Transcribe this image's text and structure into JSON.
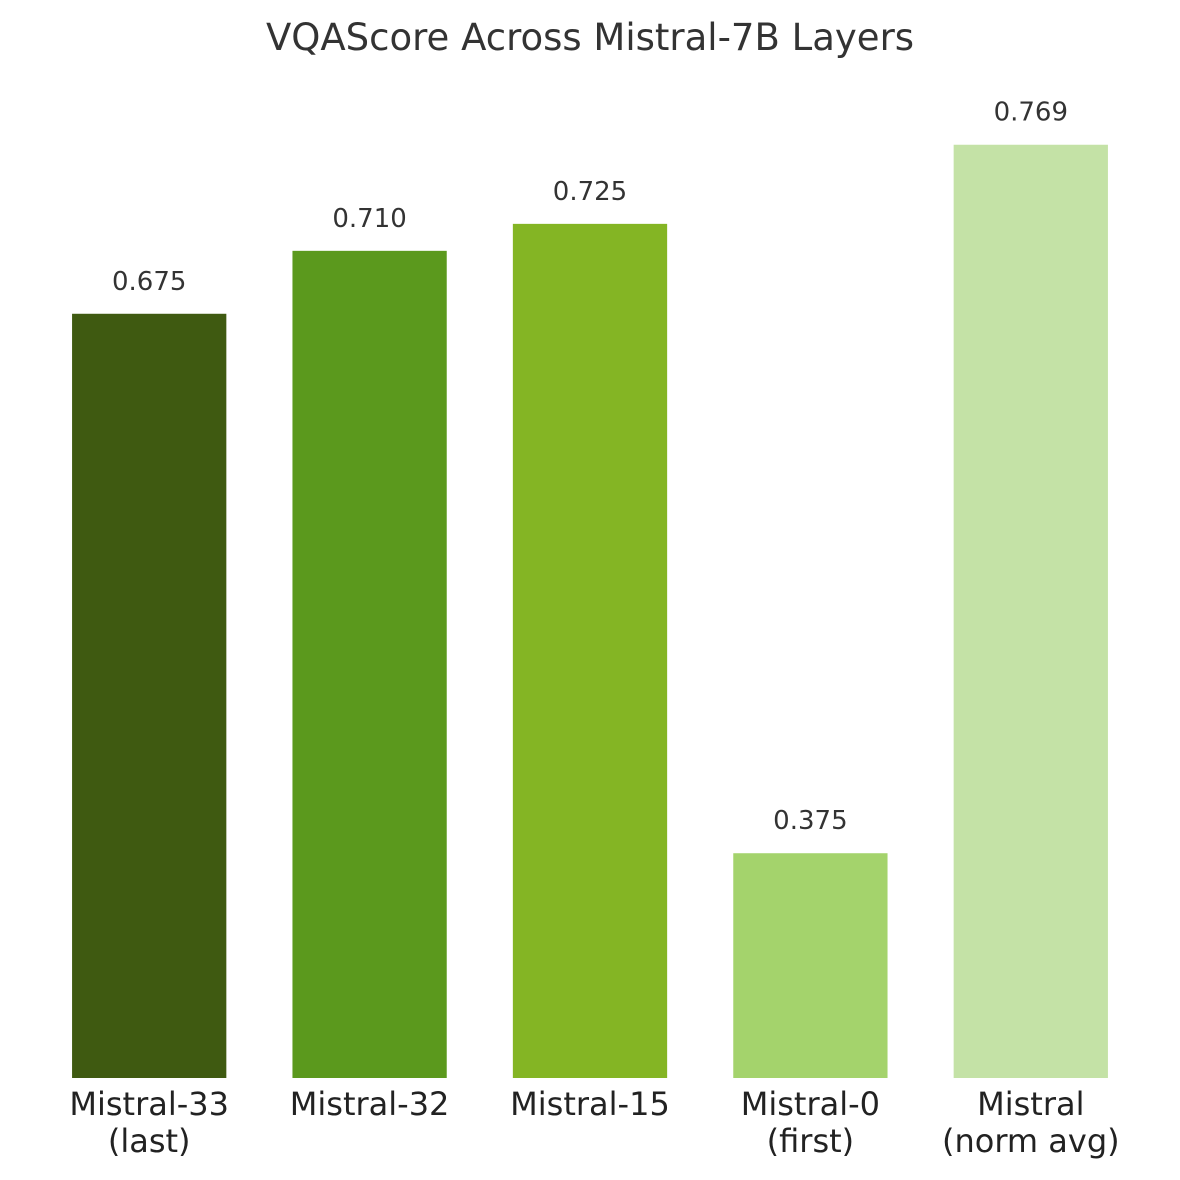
{
  "chart_data": {
    "type": "bar",
    "title": "VQAScore Across Mistral-7B Layers",
    "categories": [
      "Mistral-33\n(last)",
      "Mistral-32",
      "Mistral-15",
      "Mistral-0\n(first)",
      "Mistral\n(norm avg)"
    ],
    "values": [
      0.675,
      0.71,
      0.725,
      0.375,
      0.769
    ],
    "value_labels": [
      "0.675",
      "0.710",
      "0.725",
      "0.375",
      "0.769"
    ],
    "colors": [
      "#3f5a11",
      "#5b991d",
      "#84b524",
      "#a4d36c",
      "#c4e2a6"
    ],
    "ylim": [
      0.25,
      0.8
    ],
    "grid": false
  }
}
